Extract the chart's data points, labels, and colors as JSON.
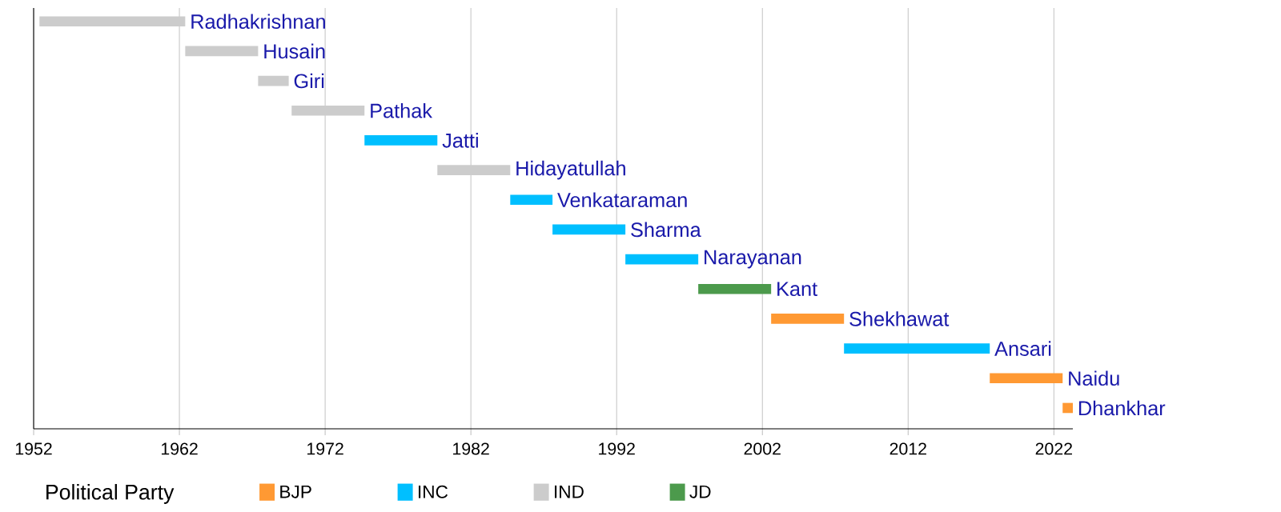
{
  "chart_data": {
    "type": "bar",
    "orientation": "horizontal",
    "categories": [
      "Radhakrishnan",
      "Husain",
      "Giri",
      "Pathak",
      "Jatti",
      "Hidayatullah",
      "Venkataraman",
      "Sharma",
      "Narayanan",
      "Kant",
      "Shekhawat",
      "Ansari",
      "Naidu",
      "Dhankhar"
    ],
    "series": [
      {
        "name": "BJP",
        "color": "#ff9933",
        "base": [
          null,
          null,
          null,
          null,
          null,
          null,
          null,
          null,
          null,
          null,
          2002.6,
          null,
          2017.6,
          2022.6
        ],
        "values": [
          null,
          null,
          null,
          null,
          null,
          null,
          null,
          null,
          null,
          null,
          5.0,
          null,
          5.0,
          0.7
        ]
      },
      {
        "name": "INC",
        "color": "#00bfff",
        "base": [
          null,
          null,
          null,
          null,
          1974.7,
          null,
          1984.7,
          1987.6,
          1992.6,
          null,
          null,
          2007.6,
          null,
          null
        ],
        "values": [
          null,
          null,
          null,
          null,
          5.0,
          null,
          2.9,
          5.0,
          5.0,
          null,
          null,
          10.0,
          null,
          null
        ]
      },
      {
        "name": "IND",
        "color": "#cccccc",
        "base": [
          1952.4,
          1962.4,
          1967.4,
          1969.7,
          null,
          1979.7,
          null,
          null,
          null,
          null,
          null,
          null,
          null,
          null
        ],
        "values": [
          10.0,
          5.0,
          2.1,
          5.0,
          null,
          5.0,
          null,
          null,
          null,
          null,
          null,
          null,
          null,
          null
        ]
      },
      {
        "name": "JD",
        "color": "#4c9a4c",
        "base": [
          null,
          null,
          null,
          null,
          null,
          null,
          null,
          null,
          null,
          1997.6,
          null,
          null,
          null,
          null
        ],
        "values": [
          null,
          null,
          null,
          null,
          null,
          null,
          null,
          null,
          null,
          5.0,
          null,
          null,
          null,
          null
        ]
      }
    ],
    "legend_title": "Political Party",
    "legend": "bottom",
    "xlim": [
      1952,
      2023.3
    ],
    "xticks": [
      1952,
      1962,
      1972,
      1982,
      1992,
      2002,
      2012,
      2022
    ],
    "grid": "x"
  }
}
